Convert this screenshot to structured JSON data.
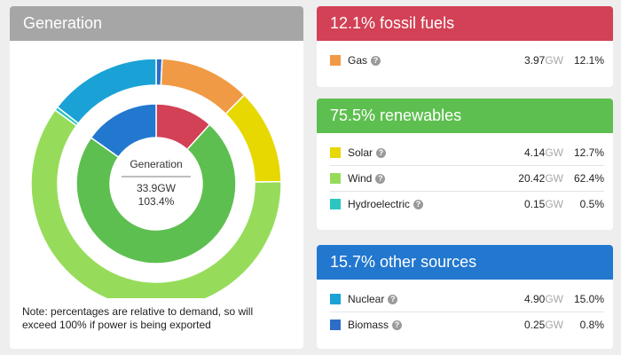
{
  "generation": {
    "title": "Generation",
    "center_title": "Generation",
    "center_gw": "33.9GW",
    "center_pct": "103.4%",
    "note": "Note: percentages are relative to demand, so will exceed 100% if power is being exported"
  },
  "groups": [
    {
      "title": "12.1% fossil fuels",
      "color": "#d24156",
      "items": [
        {
          "name": "Gas",
          "color": "#f09a45",
          "gw": "3.97",
          "unit": "GW",
          "pct": "12.1%"
        }
      ]
    },
    {
      "title": "75.5% renewables",
      "color": "#5dbf4f",
      "items": [
        {
          "name": "Solar",
          "color": "#e6d800",
          "gw": "4.14",
          "unit": "GW",
          "pct": "12.7%"
        },
        {
          "name": "Wind",
          "color": "#96dc5a",
          "gw": "20.42",
          "unit": "GW",
          "pct": "62.4%"
        },
        {
          "name": "Hydroelectric",
          "color": "#2cc6c0",
          "gw": "0.15",
          "unit": "GW",
          "pct": "0.5%"
        }
      ]
    },
    {
      "title": "15.7% other sources",
      "color": "#2277cf",
      "items": [
        {
          "name": "Nuclear",
          "color": "#1aa2d6",
          "gw": "4.90",
          "unit": "GW",
          "pct": "15.0%"
        },
        {
          "name": "Biomass",
          "color": "#2e6dc6",
          "gw": "0.25",
          "unit": "GW",
          "pct": "0.8%"
        }
      ]
    }
  ],
  "help_glyph": "?",
  "chart_data": {
    "type": "donut",
    "outer_ring": [
      {
        "name": "Biomass",
        "value": 0.8,
        "color": "#2e6dc6"
      },
      {
        "name": "Gas",
        "value": 12.1,
        "color": "#f09a45"
      },
      {
        "name": "Solar",
        "value": 12.7,
        "color": "#e6d800"
      },
      {
        "name": "Wind",
        "value": 62.4,
        "color": "#96dc5a"
      },
      {
        "name": "Hydroelectric",
        "value": 0.5,
        "color": "#2cc6c0"
      },
      {
        "name": "Nuclear",
        "value": 15.0,
        "color": "#1aa2d6"
      }
    ],
    "inner_ring": [
      {
        "name": "fossil fuels",
        "value": 12.1,
        "color": "#d24156"
      },
      {
        "name": "renewables",
        "value": 75.5,
        "color": "#5dbf4f"
      },
      {
        "name": "other sources",
        "value": 15.7,
        "color": "#2277cf"
      }
    ]
  }
}
